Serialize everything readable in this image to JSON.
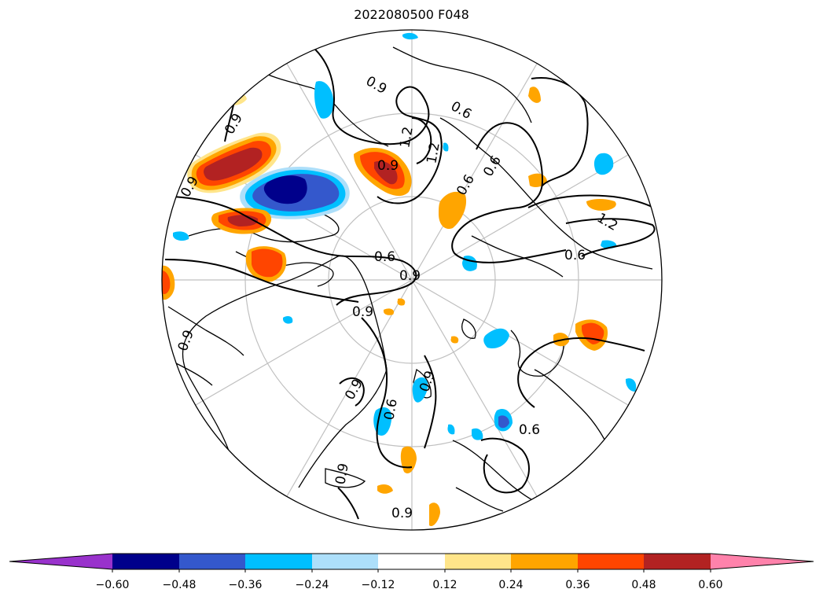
{
  "title": "2022080500 F048",
  "colorbar": {
    "ticks": [
      "−0.60",
      "−0.48",
      "−0.36",
      "−0.24",
      "−0.12",
      "0.12",
      "0.24",
      "0.36",
      "0.48",
      "0.60"
    ],
    "colors": [
      "#9932CC",
      "#00008B",
      "#3458CC",
      "#00BFFF",
      "#ADDFFA",
      "#FFFFFF",
      "#FFE58A",
      "#FFA500",
      "#FF4500",
      "#B22222",
      "#FF82AB"
    ],
    "extend": "both"
  },
  "contour_labels": [
    "0.9",
    "0.9",
    "0.9",
    "0.9",
    "1.2",
    "1.2",
    "0.6",
    "0.6",
    "0.6",
    "0.9",
    "0.9",
    "0.6",
    "0.9",
    "0.9",
    "0.6",
    "0.6",
    "0.9",
    "1.2",
    "0.9",
    "0.6",
    "0.9"
  ],
  "map_style": {
    "projection": "north polar stereographic",
    "gridlines": true,
    "gridline_color": "#C0C0C0",
    "coastline_color": "#000000"
  }
}
